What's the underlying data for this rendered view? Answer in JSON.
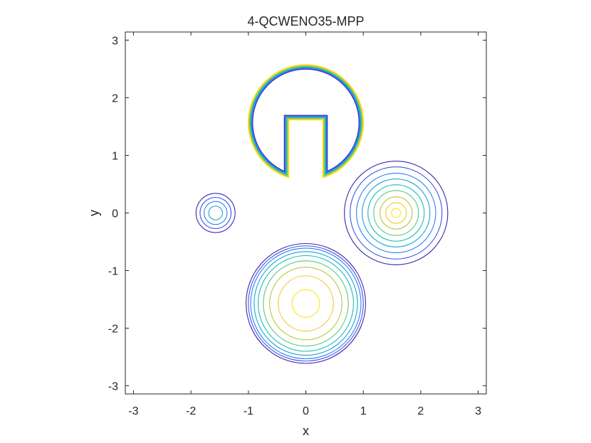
{
  "chart_data": {
    "type": "contour",
    "title": "4-QCWENO35-MPP",
    "xlabel": "x",
    "ylabel": "y",
    "xlim": [
      -3.1416,
      3.1416
    ],
    "ylim": [
      -3.1416,
      3.1416
    ],
    "xticks": [
      -3,
      -2,
      -1,
      0,
      1,
      2,
      3
    ],
    "yticks": [
      -3,
      -2,
      -1,
      0,
      1,
      2,
      3
    ],
    "xtick_labels": [
      "-3",
      "-2",
      "-1",
      "0",
      "1",
      "2",
      "3"
    ],
    "ytick_labels": [
      "-3",
      "-2",
      "-1",
      "0",
      "1",
      "2",
      "3"
    ],
    "grid": false,
    "colormap": [
      "#3e26a8",
      "#4354e6",
      "#2d80fa",
      "#1aa3d6",
      "#18bfb5",
      "#54cc7b",
      "#b8c73a",
      "#f5c62f",
      "#fae61b"
    ],
    "shapes": [
      {
        "name": "slotted-disk",
        "center": [
          0,
          1.5708
        ],
        "radius": 1.0,
        "slot_x": [
          -0.3,
          0.3
        ],
        "slot_y_top": 1.62,
        "levels": [
          0.1,
          0.2,
          0.3,
          0.4,
          0.5,
          0.6,
          0.7,
          0.8,
          0.9
        ],
        "level_offsets": [
          0.075,
          0.065,
          0.055,
          0.045,
          0.035,
          0.025,
          0.015,
          0.005,
          -0.005
        ]
      },
      {
        "name": "cone",
        "center": [
          1.5708,
          0
        ],
        "radius": 0.9,
        "levels": [
          0.1,
          0.2,
          0.3,
          0.4,
          0.5,
          0.6,
          0.7,
          0.8,
          0.9
        ],
        "level_radii": [
          0.9,
          0.8,
          0.69,
          0.59,
          0.49,
          0.39,
          0.28,
          0.18,
          0.08
        ]
      },
      {
        "name": "hump",
        "center": [
          0,
          -1.5708
        ],
        "radius": 1.05,
        "levels": [
          0.1,
          0.2,
          0.3,
          0.4,
          0.5,
          0.6,
          0.7,
          0.8,
          0.9
        ],
        "level_radii": [
          1.04,
          1.0,
          0.96,
          0.9,
          0.83,
          0.74,
          0.63,
          0.48,
          0.24
        ]
      },
      {
        "name": "small-gaussian",
        "center": [
          -1.5708,
          0
        ],
        "radius": 0.34,
        "levels": [
          0.1,
          0.2,
          0.3,
          0.4
        ],
        "level_radii": [
          0.34,
          0.27,
          0.2,
          0.12
        ]
      }
    ]
  }
}
